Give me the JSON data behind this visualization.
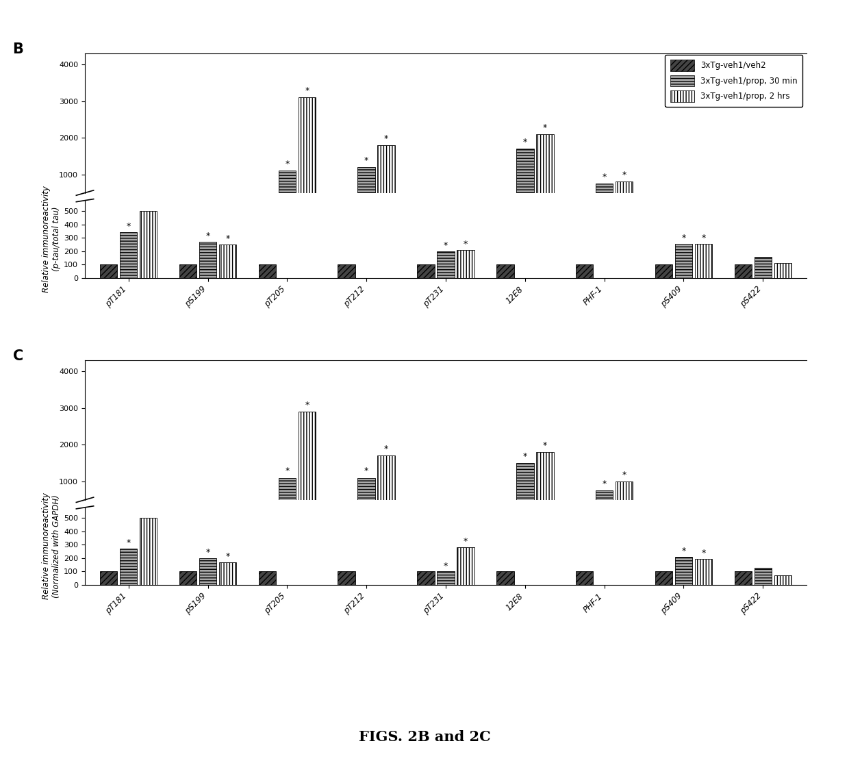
{
  "categories": [
    "pT181",
    "pS199",
    "pT205",
    "pT212",
    "pT231",
    "12E8",
    "PHF-1",
    "pS409",
    "pS422"
  ],
  "legend_labels": [
    "3xTg-veh1/veh2",
    "3xTg-veh1/prop, 30 min",
    "3xTg-veh1/prop, 2 hrs"
  ],
  "bar_colors": [
    "#444444",
    "#aaaaaa",
    "#ffffff"
  ],
  "bar_hatches": [
    "////",
    "----",
    "||||"
  ],
  "panel_B": {
    "ylabel": "Relative immunoreactivity\n(p-tau/total tau)",
    "data": [
      [
        100,
        340,
        500
      ],
      [
        100,
        270,
        250
      ],
      [
        100,
        1100,
        3100
      ],
      [
        100,
        1200,
        1800
      ],
      [
        100,
        200,
        210
      ],
      [
        100,
        1700,
        2100
      ],
      [
        100,
        750,
        800
      ],
      [
        100,
        255,
        255
      ],
      [
        100,
        160,
        110
      ]
    ],
    "asterisks": [
      [
        false,
        true,
        false
      ],
      [
        false,
        true,
        true
      ],
      [
        false,
        true,
        true
      ],
      [
        false,
        true,
        true
      ],
      [
        false,
        true,
        true
      ],
      [
        false,
        true,
        true
      ],
      [
        false,
        true,
        true
      ],
      [
        false,
        true,
        true
      ],
      [
        false,
        false,
        false
      ]
    ]
  },
  "panel_C": {
    "ylabel": "Relative immunoreactivity\n(Normalized with GAPDH)",
    "data": [
      [
        100,
        270,
        500
      ],
      [
        100,
        200,
        170
      ],
      [
        100,
        1100,
        2900
      ],
      [
        100,
        1100,
        1700
      ],
      [
        100,
        100,
        280
      ],
      [
        100,
        1500,
        1800
      ],
      [
        100,
        750,
        1000
      ],
      [
        100,
        210,
        195
      ],
      [
        100,
        130,
        70
      ]
    ],
    "asterisks": [
      [
        false,
        true,
        false
      ],
      [
        false,
        true,
        true
      ],
      [
        false,
        true,
        true
      ],
      [
        false,
        true,
        true
      ],
      [
        false,
        true,
        true
      ],
      [
        false,
        true,
        true
      ],
      [
        false,
        true,
        true
      ],
      [
        false,
        true,
        true
      ],
      [
        false,
        false,
        false
      ]
    ]
  },
  "figure_label": "FIGS. 2B and 2C",
  "background_color": "#ffffff",
  "bar_width": 0.25
}
